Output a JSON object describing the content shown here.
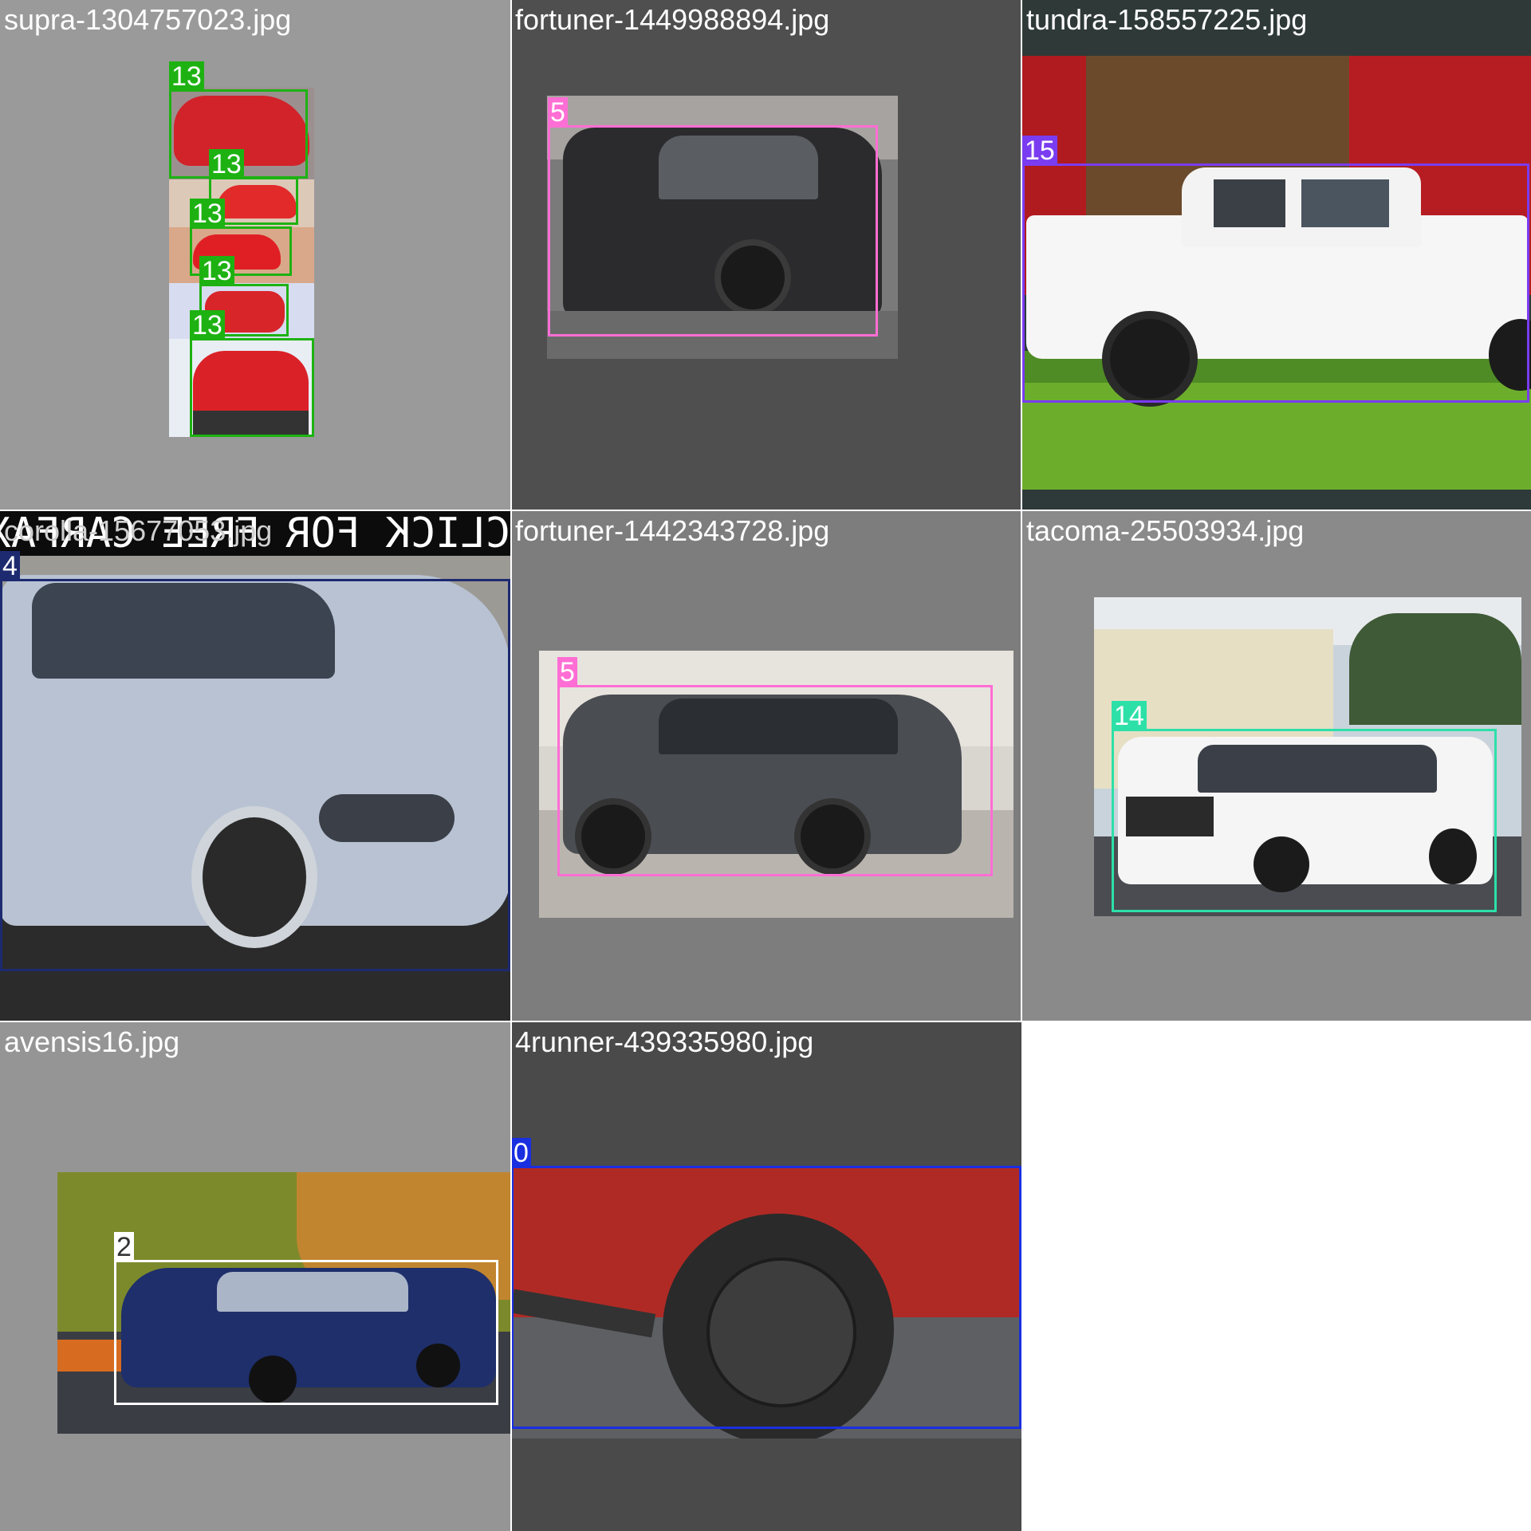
{
  "mosaic": {
    "tiles": [
      {
        "filename": "supra-1304757023.jpg",
        "tile_bg": "#9a9a9a",
        "boxes": [
          {
            "label": "13",
            "color": "#1db212"
          },
          {
            "label": "13",
            "color": "#1db212"
          },
          {
            "label": "13",
            "color": "#1db212"
          },
          {
            "label": "13",
            "color": "#1db212"
          },
          {
            "label": "13",
            "color": "#1db212"
          }
        ]
      },
      {
        "filename": "fortuner-1449988894.jpg",
        "tile_bg": "#4f4f4f",
        "boxes": [
          {
            "label": "5",
            "color": "#ff6ed4"
          }
        ]
      },
      {
        "filename": "tundra-158557225.jpg",
        "tile_bg": "#4a4a4a",
        "boxes": [
          {
            "label": "15",
            "color": "#7a3cf0"
          }
        ]
      },
      {
        "filename": "corolla-15677053.jpg",
        "tile_bg": "#111111",
        "banner_text": "CLICK FOR FREE CARFAX",
        "boxes": [
          {
            "label": "4",
            "color": "#1d2a70"
          }
        ]
      },
      {
        "filename": "fortuner-1442343728.jpg",
        "tile_bg": "#7d7d7d",
        "boxes": [
          {
            "label": "5",
            "color": "#ff6ed4"
          }
        ]
      },
      {
        "filename": "tacoma-25503934.jpg",
        "tile_bg": "#8a8a8a",
        "boxes": [
          {
            "label": "14",
            "color": "#2de0a8"
          }
        ]
      },
      {
        "filename": "avensis16.jpg",
        "tile_bg": "#959595",
        "boxes": [
          {
            "label": "2",
            "color": "#ffffff",
            "label_color": "#333333"
          }
        ]
      },
      {
        "filename": "4runner-439335980.jpg",
        "tile_bg": "#4a4a4a",
        "boxes": [
          {
            "label": "0",
            "color": "#1a2fe0"
          }
        ]
      }
    ]
  }
}
